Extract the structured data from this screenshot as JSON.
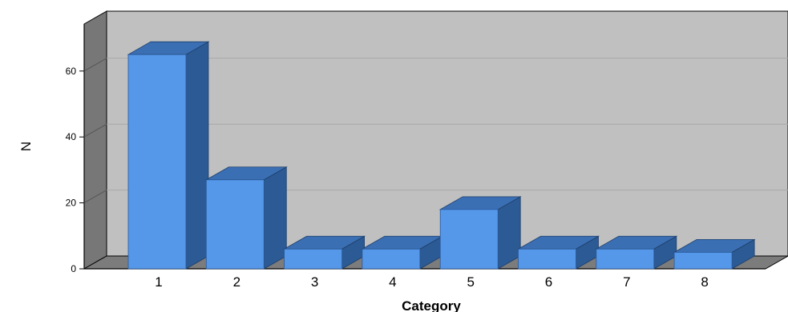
{
  "chart_data": {
    "type": "bar",
    "style": "3d",
    "categories": [
      "1",
      "2",
      "3",
      "4",
      "5",
      "6",
      "7",
      "8"
    ],
    "values": [
      65,
      27,
      6,
      6,
      18,
      6,
      6,
      5
    ],
    "xlabel": "Category",
    "ylabel": "N",
    "ylim": [
      0,
      70
    ],
    "yticks": [
      "0",
      "20",
      "40",
      "60"
    ],
    "grid": true,
    "legend": "none",
    "colors": {
      "bar_front": "#5597e8",
      "bar_side": "#2c5a94",
      "bar_top": "#3b6fb3",
      "back_wall": "#c0c0c0",
      "side_wall": "#777777",
      "floor": "#7c7c7c",
      "gridline": "#a8a8a8"
    }
  }
}
